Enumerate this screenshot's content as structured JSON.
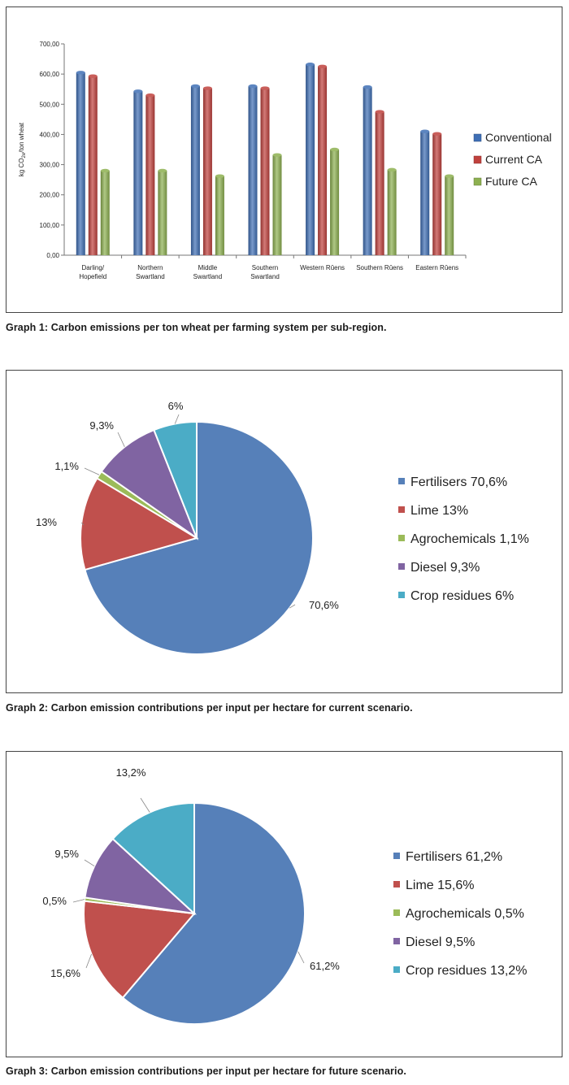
{
  "colors": {
    "conventional": "#3f6fb5",
    "current_ca": "#c0413d",
    "future_ca": "#8db050",
    "fertilisers": "#5680b9",
    "lime": "#c0504d",
    "agrochemicals": "#9bbb59",
    "diesel": "#8064a2",
    "crop_residues": "#4bacc6"
  },
  "captions": {
    "graph1": "Graph 1: Carbon emissions per ton wheat per farming system per sub-region.",
    "graph2": "Graph 2: Carbon emission contributions per input per hectare for current scenario.",
    "graph3": "Graph 3: Carbon emission contributions per input per hectare for future scenario."
  },
  "chart_data": [
    {
      "type": "bar",
      "ylabel_main": "kg CO",
      "ylabel_sub": "2e",
      "ylabel_tail": "/ton wheat",
      "ylim": [
        0,
        700
      ],
      "yticks": [
        "0,00",
        "100,00",
        "200,00",
        "300,00",
        "400,00",
        "500,00",
        "600,00",
        "700,00"
      ],
      "grid": false,
      "legend_position": "right",
      "categories": [
        [
          "Darling/",
          "Hopefield"
        ],
        [
          "Northern",
          "Swartland"
        ],
        [
          "Middle",
          "Swartland"
        ],
        [
          "Southern",
          "Swartland"
        ],
        [
          "Western Rûens"
        ],
        [
          "Southern Rûens"
        ],
        [
          "Eastern Rûens"
        ]
      ],
      "series": [
        {
          "name": "Conventional",
          "values": [
            605,
            543,
            560,
            560,
            632,
            557,
            410
          ]
        },
        {
          "name": "Current CA",
          "values": [
            593,
            530,
            553,
            553,
            625,
            475,
            402
          ]
        },
        {
          "name": "Future CA",
          "values": [
            280,
            280,
            262,
            332,
            350,
            283,
            262
          ]
        }
      ]
    },
    {
      "type": "pie",
      "legend_position": "right",
      "slices": [
        {
          "name": "Fertilisers",
          "value": 70.6,
          "label": "70,6%",
          "legend": "Fertilisers  70,6%"
        },
        {
          "name": "Lime",
          "value": 13,
          "label": "13%",
          "legend": "Lime  13%"
        },
        {
          "name": "Agrochemicals",
          "value": 1.1,
          "label": "1,1%",
          "legend": "Agrochemicals  1,1%"
        },
        {
          "name": "Diesel",
          "value": 9.3,
          "label": "9,3%",
          "legend": "Diesel  9,3%"
        },
        {
          "name": "Crop residues",
          "value": 6,
          "label": "6%",
          "legend": "Crop residues  6%"
        }
      ]
    },
    {
      "type": "pie",
      "legend_position": "right",
      "slices": [
        {
          "name": "Fertilisers",
          "value": 61.2,
          "label": "61,2%",
          "legend": "Fertilisers   61,2%"
        },
        {
          "name": "Lime",
          "value": 15.6,
          "label": "15,6%",
          "legend": "Lime  15,6%"
        },
        {
          "name": "Agrochemicals",
          "value": 0.5,
          "label": "0,5%",
          "legend": "Agrochemicals  0,5%"
        },
        {
          "name": "Diesel",
          "value": 9.5,
          "label": "9,5%",
          "legend": "Diesel  9,5%"
        },
        {
          "name": "Crop residues",
          "value": 13.2,
          "label": "13,2%",
          "legend": "Crop residues  13,2%"
        }
      ]
    }
  ]
}
